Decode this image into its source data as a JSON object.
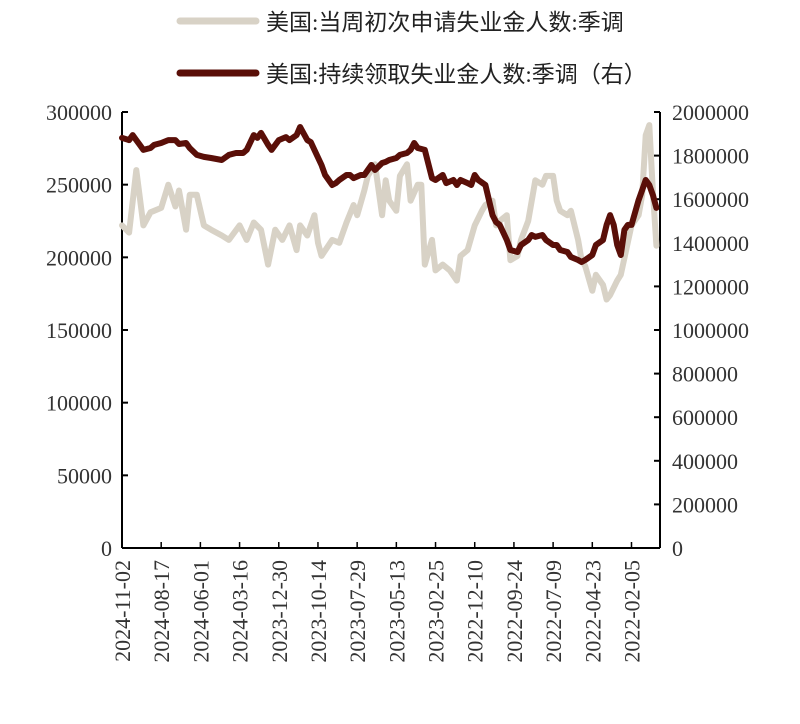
{
  "chart_data": {
    "type": "line",
    "title": "",
    "x_axis": {
      "unit": "weeks before 2024-11-02 (reversed date axis)",
      "range": [
        0,
        151
      ],
      "tick_weeks": [
        0,
        11,
        22,
        33,
        44,
        55,
        66,
        77,
        88,
        99,
        110,
        121,
        132,
        143
      ],
      "tick_labels": [
        "2024-11-02",
        "2024-08-17",
        "2024-06-01",
        "2024-03-16",
        "2023-12-30",
        "2023-10-14",
        "2023-07-29",
        "2023-05-13",
        "2023-02-25",
        "2022-12-10",
        "2022-09-24",
        "2022-07-09",
        "2022-04-23",
        "2022-02-05"
      ]
    },
    "y_left": {
      "range": [
        0,
        300000
      ],
      "ticks": [
        0,
        50000,
        100000,
        150000,
        200000,
        250000,
        300000
      ],
      "tick_labels": [
        "0",
        "50000",
        "100000",
        "150000",
        "200000",
        "250000",
        "300000"
      ]
    },
    "y_right": {
      "range": [
        0,
        2000000
      ],
      "ticks": [
        0,
        200000,
        400000,
        600000,
        800000,
        1000000,
        1200000,
        1400000,
        1600000,
        1800000,
        2000000
      ],
      "tick_labels": [
        "0",
        "200000",
        "400000",
        "600000",
        "800000",
        "1000000",
        "1200000",
        "1400000",
        "1600000",
        "1800000",
        "2000000"
      ]
    },
    "legend_placement": "top",
    "series": [
      {
        "name": "美国:当周初次申请失业金人数:季调",
        "axis": "left",
        "color": "#d8d2c6",
        "points": [
          [
            0,
            222000
          ],
          [
            2,
            217000
          ],
          [
            4,
            260000
          ],
          [
            6,
            222000
          ],
          [
            8,
            231000
          ],
          [
            11,
            234000
          ],
          [
            13,
            250000
          ],
          [
            15,
            235000
          ],
          [
            16,
            246000
          ],
          [
            18,
            219000
          ],
          [
            19,
            243000
          ],
          [
            21,
            243000
          ],
          [
            23,
            222000
          ],
          [
            25,
            219000
          ],
          [
            28,
            215000
          ],
          [
            30,
            212000
          ],
          [
            33,
            222000
          ],
          [
            35,
            212000
          ],
          [
            37,
            224000
          ],
          [
            39,
            219000
          ],
          [
            41,
            195000
          ],
          [
            43,
            219000
          ],
          [
            45,
            212000
          ],
          [
            47,
            222000
          ],
          [
            49,
            205000
          ],
          [
            50,
            222000
          ],
          [
            52,
            215000
          ],
          [
            54,
            229000
          ],
          [
            55,
            210000
          ],
          [
            56,
            201000
          ],
          [
            59,
            212000
          ],
          [
            61,
            210000
          ],
          [
            63,
            224000
          ],
          [
            65,
            236000
          ],
          [
            66,
            229000
          ],
          [
            68,
            246000
          ],
          [
            69,
            256000
          ],
          [
            71,
            264000
          ],
          [
            73,
            229000
          ],
          [
            74,
            253000
          ],
          [
            75,
            239000
          ],
          [
            77,
            232000
          ],
          [
            78,
            256000
          ],
          [
            80,
            264000
          ],
          [
            81,
            239000
          ],
          [
            83,
            250000
          ],
          [
            84,
            250000
          ],
          [
            85,
            195000
          ],
          [
            87,
            212000
          ],
          [
            88,
            191000
          ],
          [
            90,
            195000
          ],
          [
            92,
            191000
          ],
          [
            94,
            184000
          ],
          [
            95,
            201000
          ],
          [
            97,
            205000
          ],
          [
            99,
            222000
          ],
          [
            101,
            232000
          ],
          [
            102,
            236000
          ],
          [
            104,
            239000
          ],
          [
            105,
            222000
          ],
          [
            106,
            225000
          ],
          [
            108,
            229000
          ],
          [
            109,
            198000
          ],
          [
            111,
            201000
          ],
          [
            112,
            212000
          ],
          [
            114,
            225000
          ],
          [
            116,
            253000
          ],
          [
            118,
            250000
          ],
          [
            119,
            256000
          ],
          [
            121,
            256000
          ],
          [
            122,
            239000
          ],
          [
            123,
            232000
          ],
          [
            125,
            229000
          ],
          [
            126,
            232000
          ],
          [
            128,
            212000
          ],
          [
            129,
            198000
          ],
          [
            130,
            194000
          ],
          [
            132,
            177000
          ],
          [
            133,
            188000
          ],
          [
            135,
            181000
          ],
          [
            136,
            171000
          ],
          [
            137,
            174000
          ],
          [
            139,
            184000
          ],
          [
            140,
            188000
          ],
          [
            143,
            222000
          ],
          [
            145,
            229000
          ],
          [
            146,
            243000
          ],
          [
            147,
            284000
          ],
          [
            148,
            291000
          ],
          [
            149,
            245000
          ],
          [
            150,
            208000
          ]
        ]
      },
      {
        "name": "美国:持续领取失业金人数:季调（右）",
        "axis": "right",
        "color": "#5a0f08",
        "points": [
          [
            0,
            1881000
          ],
          [
            2,
            1871000
          ],
          [
            3,
            1894000
          ],
          [
            4,
            1871000
          ],
          [
            5,
            1849000
          ],
          [
            6,
            1826000
          ],
          [
            8,
            1835000
          ],
          [
            9,
            1849000
          ],
          [
            11,
            1858000
          ],
          [
            13,
            1871000
          ],
          [
            15,
            1871000
          ],
          [
            16,
            1853000
          ],
          [
            18,
            1858000
          ],
          [
            19,
            1835000
          ],
          [
            21,
            1803000
          ],
          [
            23,
            1794000
          ],
          [
            25,
            1789000
          ],
          [
            28,
            1780000
          ],
          [
            30,
            1803000
          ],
          [
            32,
            1812000
          ],
          [
            34,
            1812000
          ],
          [
            35,
            1826000
          ],
          [
            37,
            1894000
          ],
          [
            38,
            1881000
          ],
          [
            39,
            1904000
          ],
          [
            41,
            1849000
          ],
          [
            42,
            1826000
          ],
          [
            44,
            1871000
          ],
          [
            46,
            1885000
          ],
          [
            47,
            1871000
          ],
          [
            49,
            1894000
          ],
          [
            50,
            1931000
          ],
          [
            52,
            1871000
          ],
          [
            53,
            1862000
          ],
          [
            54,
            1826000
          ],
          [
            56,
            1757000
          ],
          [
            57,
            1711000
          ],
          [
            59,
            1665000
          ],
          [
            60,
            1674000
          ],
          [
            61,
            1688000
          ],
          [
            63,
            1711000
          ],
          [
            64,
            1711000
          ],
          [
            65,
            1697000
          ],
          [
            67,
            1711000
          ],
          [
            68,
            1711000
          ],
          [
            70,
            1757000
          ],
          [
            71,
            1734000
          ],
          [
            73,
            1766000
          ],
          [
            74,
            1771000
          ],
          [
            75,
            1780000
          ],
          [
            77,
            1789000
          ],
          [
            78,
            1803000
          ],
          [
            80,
            1812000
          ],
          [
            81,
            1826000
          ],
          [
            82,
            1858000
          ],
          [
            83,
            1835000
          ],
          [
            85,
            1826000
          ],
          [
            87,
            1697000
          ],
          [
            88,
            1688000
          ],
          [
            90,
            1711000
          ],
          [
            91,
            1674000
          ],
          [
            93,
            1688000
          ],
          [
            94,
            1665000
          ],
          [
            95,
            1688000
          ],
          [
            97,
            1674000
          ],
          [
            98,
            1665000
          ],
          [
            99,
            1711000
          ],
          [
            100,
            1688000
          ],
          [
            102,
            1665000
          ],
          [
            104,
            1527000
          ],
          [
            105,
            1495000
          ],
          [
            106,
            1482000
          ],
          [
            108,
            1413000
          ],
          [
            109,
            1367000
          ],
          [
            111,
            1358000
          ],
          [
            112,
            1390000
          ],
          [
            114,
            1413000
          ],
          [
            115,
            1436000
          ],
          [
            116,
            1427000
          ],
          [
            118,
            1436000
          ],
          [
            119,
            1413000
          ],
          [
            121,
            1390000
          ],
          [
            122,
            1390000
          ],
          [
            123,
            1367000
          ],
          [
            125,
            1358000
          ],
          [
            126,
            1335000
          ],
          [
            128,
            1321000
          ],
          [
            129,
            1312000
          ],
          [
            130,
            1321000
          ],
          [
            132,
            1344000
          ],
          [
            133,
            1390000
          ],
          [
            135,
            1413000
          ],
          [
            136,
            1482000
          ],
          [
            137,
            1527000
          ],
          [
            138,
            1482000
          ],
          [
            139,
            1390000
          ],
          [
            140,
            1344000
          ],
          [
            141,
            1459000
          ],
          [
            142,
            1482000
          ],
          [
            143,
            1482000
          ],
          [
            145,
            1596000
          ],
          [
            146,
            1642000
          ],
          [
            147,
            1688000
          ],
          [
            148,
            1665000
          ],
          [
            149,
            1619000
          ],
          [
            150,
            1560000
          ]
        ]
      }
    ]
  }
}
